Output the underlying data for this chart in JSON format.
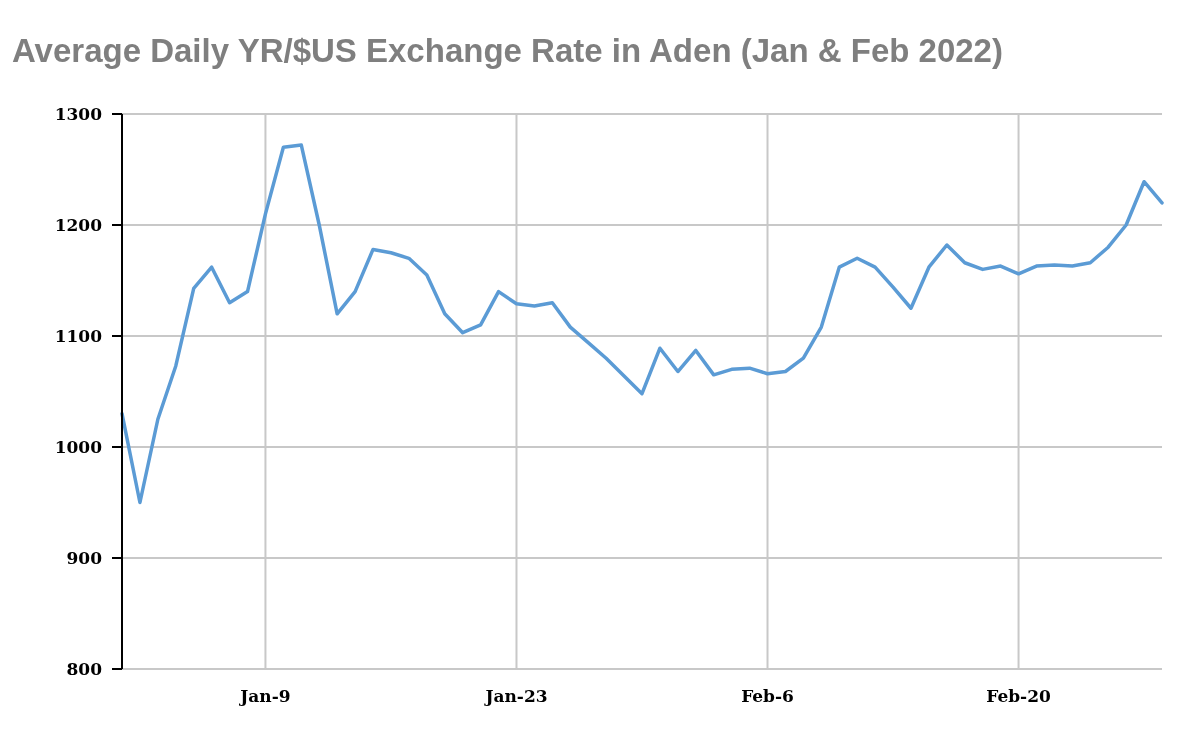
{
  "chart_data": {
    "type": "line",
    "title": "Average Daily YR/$US Exchange Rate in Aden (Jan & Feb 2022)",
    "x": [
      "2022-01-01",
      "2022-01-02",
      "2022-01-03",
      "2022-01-04",
      "2022-01-05",
      "2022-01-06",
      "2022-01-07",
      "2022-01-08",
      "2022-01-09",
      "2022-01-10",
      "2022-01-11",
      "2022-01-12",
      "2022-01-13",
      "2022-01-14",
      "2022-01-15",
      "2022-01-16",
      "2022-01-17",
      "2022-01-18",
      "2022-01-19",
      "2022-01-20",
      "2022-01-21",
      "2022-01-22",
      "2022-01-23",
      "2022-01-24",
      "2022-01-25",
      "2022-01-26",
      "2022-01-27",
      "2022-01-28",
      "2022-01-29",
      "2022-01-30",
      "2022-01-31",
      "2022-02-01",
      "2022-02-02",
      "2022-02-03",
      "2022-02-04",
      "2022-02-05",
      "2022-02-06",
      "2022-02-07",
      "2022-02-08",
      "2022-02-09",
      "2022-02-10",
      "2022-02-11",
      "2022-02-12",
      "2022-02-13",
      "2022-02-14",
      "2022-02-15",
      "2022-02-16",
      "2022-02-17",
      "2022-02-18",
      "2022-02-19",
      "2022-02-20",
      "2022-02-21",
      "2022-02-22",
      "2022-02-23",
      "2022-02-24",
      "2022-02-25",
      "2022-02-26",
      "2022-02-27",
      "2022-02-28"
    ],
    "series": [
      {
        "color": "#5b9bd5",
        "values": [
          1030,
          950,
          1025,
          1073,
          1143,
          1162,
          1130,
          1140,
          1210,
          1270,
          1272,
          1200,
          1120,
          1140,
          1178,
          1175,
          1170,
          1155,
          1120,
          1103,
          1110,
          1140,
          1129,
          1127,
          1130,
          1108,
          1094,
          1080,
          1064,
          1048,
          1089,
          1068,
          1087,
          1065,
          1070,
          1071,
          1066,
          1068,
          1080,
          1108,
          1162,
          1170,
          1162,
          1144,
          1125,
          1162,
          1182,
          1166,
          1160,
          1163,
          1156,
          1163,
          1164,
          1163,
          1166,
          1180,
          1200,
          1239,
          1220
        ]
      }
    ],
    "xlim": [
      "2022-01-01",
      "2022-02-28"
    ],
    "xticks": [
      {
        "value": "2022-01-09",
        "label": "Jan-9"
      },
      {
        "value": "2022-01-23",
        "label": "Jan-23"
      },
      {
        "value": "2022-02-06",
        "label": "Feb-6"
      },
      {
        "value": "2022-02-20",
        "label": "Feb-20"
      }
    ],
    "ylim": [
      800,
      1300
    ],
    "yticks": [
      800,
      900,
      1000,
      1100,
      1200,
      1300
    ],
    "grid": true,
    "marker": "none",
    "line_style": "solid"
  }
}
